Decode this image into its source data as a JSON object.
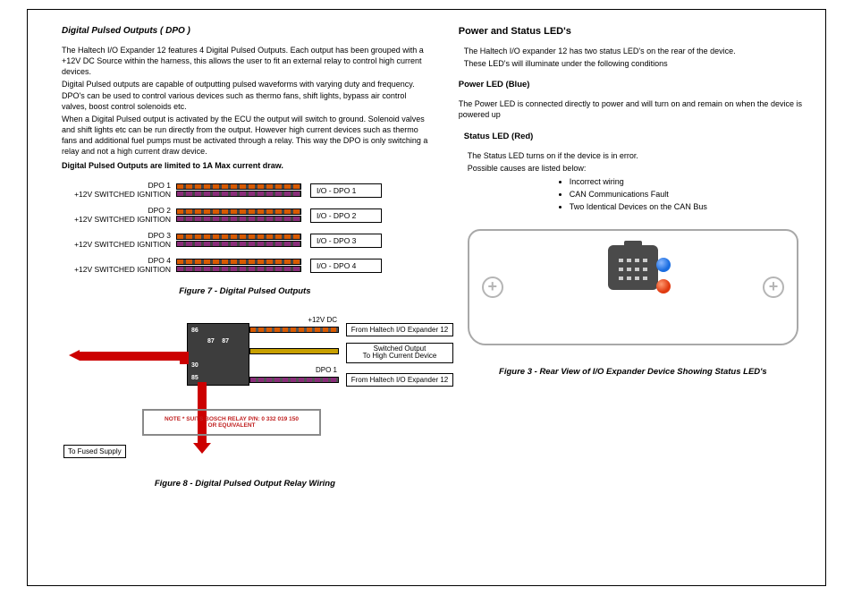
{
  "left": {
    "title": "Digital Pulsed Outputs ( DPO )",
    "p1": "The Haltech I/O Expander 12 features 4 Digital Pulsed Outputs. Each output has been grouped with a +12V DC Source within the harness, this allows the user to fit an external relay to control high current devices.",
    "p2": "Digital Pulsed outputs are capable of outputting pulsed waveforms with varying duty and frequency. DPO's can be used to control various devices such as thermo fans, shift lights, bypass air control valves, boost control solenoids etc.",
    "p3": "When a Digital Pulsed output is activated by the ECU the output will switch to ground. Solenoid valves and shift lights etc can be run directly from the output. However high current devices such as thermo fans and additional fuel pumps must be activated through a relay. This way the DPO is only switching a relay and not a high current draw device.",
    "p4": "Digital Pulsed Outputs are limited to 1A Max current draw.",
    "dpo_rows": [
      {
        "l1": "DPO 1",
        "l2": "+12V SWITCHED IGNITION",
        "r": "I/O - DPO 1",
        "c1": "#d85a00",
        "c2": "#8a2d7a"
      },
      {
        "l1": "DPO 2",
        "l2": "+12V SWITCHED IGNITION",
        "r": "I/O - DPO 2",
        "c1": "#d85a00",
        "c2": "#8a2d7a"
      },
      {
        "l1": "DPO 3",
        "l2": "+12V SWITCHED IGNITION",
        "r": "I/O - DPO 3",
        "c1": "#d85a00",
        "c2": "#8a2d7a"
      },
      {
        "l1": "DPO 4",
        "l2": "+12V SWITCHED IGNITION",
        "r": "I/O - DPO 4",
        "c1": "#d85a00",
        "c2": "#8a2d7a"
      }
    ],
    "fig7": "Figure 7 - Digital Pulsed Outputs",
    "relay": {
      "pin86": "86",
      "pin87a": "87",
      "pin87b": "87",
      "pin30": "30",
      "pin85": "85",
      "lbl_12v": "+12V DC",
      "lbl_dpo1": "DPO 1",
      "box_from1": "From Haltech I/O Expander 12",
      "box_switched_l1": "Switched Output",
      "box_switched_l2": "To High Current Device",
      "box_from2": "From Haltech I/O Expander 12",
      "note_l1": "NOTE * SUITS BOSCH RELAY P/N: 0 332 019 150",
      "note_l2": "OR EQUIVALENT",
      "to_fused": "To Fused Supply",
      "wire_colors": {
        "top": "#d85a00",
        "mid1": "#c8a000",
        "mid2": "#c8a000",
        "bot": "#8a2d7a"
      }
    },
    "fig8": "Figure 8 - Digital Pulsed Output Relay Wiring"
  },
  "right": {
    "title": "Power and Status LED's",
    "p1": "The Haltech I/O expander 12 has two status LED's on the rear of the device.",
    "p2": "These LED's will illuminate under the following conditions",
    "power_h": "Power LED (Blue)",
    "power_p": "The Power LED is connected directly to power and will turn on and remain on when the device is powered up",
    "status_h": "Status LED (Red)",
    "status_p1": "The Status LED turns on if the device is in error.",
    "status_p2": "Possible causes are listed below:",
    "bullets": [
      "Incorrect wiring",
      "CAN Communications Fault",
      "Two Identical Devices on the CAN Bus"
    ],
    "led_colors": {
      "blue": "#1a6de0",
      "red": "#e03a10"
    },
    "fig3": "Figure 3 - Rear View of I/O Expander Device Showing Status LED's"
  }
}
